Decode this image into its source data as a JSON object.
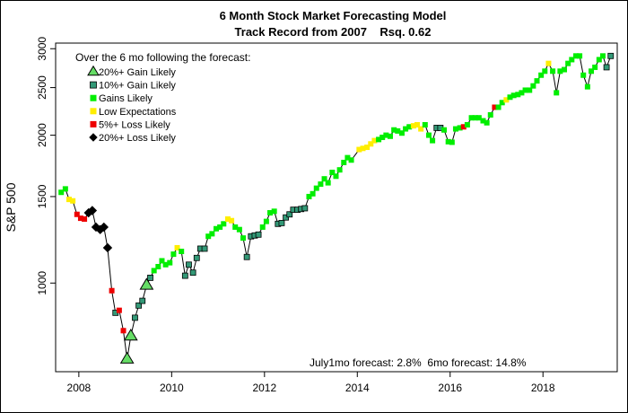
{
  "chart_data": {
    "type": "scatter",
    "title": "6 Month Stock Market Forecasting Model",
    "subtitle": "Track Record from 2007    Rsq. 0.62",
    "xlabel": "",
    "ylabel": "S&P 500",
    "x_tick_labels": [
      "2008",
      "2010",
      "2012",
      "2014",
      "2016",
      "2018"
    ],
    "x_ticks": [
      2008,
      2010,
      2012,
      2014,
      2016,
      2018
    ],
    "y_tick_labels": [
      "1000",
      "1500",
      "2000",
      "2500",
      "3000"
    ],
    "y_ticks": [
      1000,
      1500,
      2000,
      2500,
      3000
    ],
    "y_scale": "log",
    "xlim": [
      2007.5,
      2019.6
    ],
    "ylim": [
      660,
      3080
    ],
    "grid": false,
    "legend_position": "top-left",
    "legend_title": "Over the 6 mo following the forecast:",
    "footer_text": "July1mo forecast: 2.8%  6mo forecast: 14.8%",
    "categories": [
      {
        "key": "g20",
        "label": "20%+ Gain Likely",
        "shape": "triangle",
        "color": "#66dd66"
      },
      {
        "key": "g10",
        "label": "10%+ Gain Likely",
        "shape": "square",
        "color": "#339977"
      },
      {
        "key": "g",
        "label": "Gains Likely",
        "shape": "square",
        "color": "#00ee00"
      },
      {
        "key": "low",
        "label": "Low Expectations",
        "shape": "square",
        "color": "#ffee00"
      },
      {
        "key": "l5",
        "label": "5%+  Loss Likely",
        "shape": "square",
        "color": "#ee0000"
      },
      {
        "key": "l20",
        "label": "20%+  Loss Likely",
        "shape": "diamond",
        "color": "#000000"
      }
    ],
    "points": [
      [
        2007.62,
        1530,
        "g"
      ],
      [
        2007.71,
        1555,
        "g"
      ],
      [
        2007.79,
        1480,
        "low"
      ],
      [
        2007.87,
        1470,
        "low"
      ],
      [
        2007.96,
        1380,
        "l5"
      ],
      [
        2008.04,
        1355,
        "l5"
      ],
      [
        2008.12,
        1350,
        "l5"
      ],
      [
        2008.21,
        1390,
        "l20"
      ],
      [
        2008.29,
        1405,
        "l20"
      ],
      [
        2008.37,
        1300,
        "l20"
      ],
      [
        2008.46,
        1285,
        "l20"
      ],
      [
        2008.54,
        1300,
        "l20"
      ],
      [
        2008.62,
        1180,
        "l20"
      ],
      [
        2008.71,
        965,
        "l5"
      ],
      [
        2008.79,
        870,
        "g10"
      ],
      [
        2008.87,
        880,
        "l5"
      ],
      [
        2008.96,
        800,
        "l5"
      ],
      [
        2009.04,
        700,
        "g20"
      ],
      [
        2009.12,
        780,
        "g20"
      ],
      [
        2009.21,
        850,
        "g10"
      ],
      [
        2009.29,
        900,
        "g10"
      ],
      [
        2009.37,
        920,
        "g10"
      ],
      [
        2009.46,
        990,
        "g20"
      ],
      [
        2009.54,
        1025,
        "g10"
      ],
      [
        2009.62,
        1060,
        "g"
      ],
      [
        2009.71,
        1080,
        "g"
      ],
      [
        2009.79,
        1110,
        "g"
      ],
      [
        2009.87,
        1090,
        "g"
      ],
      [
        2009.96,
        1100,
        "g"
      ],
      [
        2010.04,
        1145,
        "g"
      ],
      [
        2010.12,
        1180,
        "low"
      ],
      [
        2010.21,
        1160,
        "g"
      ],
      [
        2010.29,
        1035,
        "g10"
      ],
      [
        2010.37,
        1090,
        "g10"
      ],
      [
        2010.46,
        1050,
        "g10"
      ],
      [
        2010.54,
        1125,
        "g10"
      ],
      [
        2010.62,
        1175,
        "g10"
      ],
      [
        2010.71,
        1175,
        "g10"
      ],
      [
        2010.79,
        1245,
        "g"
      ],
      [
        2010.87,
        1260,
        "g"
      ],
      [
        2010.96,
        1290,
        "g"
      ],
      [
        2011.04,
        1300,
        "g"
      ],
      [
        2011.12,
        1320,
        "g"
      ],
      [
        2011.21,
        1350,
        "low"
      ],
      [
        2011.29,
        1340,
        "low"
      ],
      [
        2011.37,
        1300,
        "g"
      ],
      [
        2011.46,
        1285,
        "g"
      ],
      [
        2011.54,
        1235,
        "g"
      ],
      [
        2011.62,
        1130,
        "g10"
      ],
      [
        2011.71,
        1245,
        "g10"
      ],
      [
        2011.79,
        1250,
        "g10"
      ],
      [
        2011.87,
        1255,
        "g10"
      ],
      [
        2011.96,
        1300,
        "g"
      ],
      [
        2012.04,
        1335,
        "g"
      ],
      [
        2012.12,
        1390,
        "g"
      ],
      [
        2012.21,
        1400,
        "g"
      ],
      [
        2012.29,
        1320,
        "g10"
      ],
      [
        2012.37,
        1325,
        "g10"
      ],
      [
        2012.46,
        1360,
        "g10"
      ],
      [
        2012.54,
        1380,
        "g10"
      ],
      [
        2012.62,
        1410,
        "g10"
      ],
      [
        2012.71,
        1410,
        "g10"
      ],
      [
        2012.79,
        1415,
        "g10"
      ],
      [
        2012.87,
        1420,
        "g10"
      ],
      [
        2012.96,
        1500,
        "g"
      ],
      [
        2013.04,
        1520,
        "g"
      ],
      [
        2013.12,
        1560,
        "g"
      ],
      [
        2013.21,
        1590,
        "g"
      ],
      [
        2013.29,
        1630,
        "g"
      ],
      [
        2013.37,
        1600,
        "g"
      ],
      [
        2013.46,
        1680,
        "g"
      ],
      [
        2013.54,
        1650,
        "g"
      ],
      [
        2013.62,
        1700,
        "g"
      ],
      [
        2013.71,
        1760,
        "g"
      ],
      [
        2013.79,
        1800,
        "g"
      ],
      [
        2013.87,
        1780,
        "g"
      ],
      [
        2014.04,
        1870,
        "low"
      ],
      [
        2014.12,
        1880,
        "low"
      ],
      [
        2014.21,
        1890,
        "low"
      ],
      [
        2014.29,
        1920,
        "low"
      ],
      [
        2014.37,
        1950,
        "low"
      ],
      [
        2014.46,
        1960,
        "g"
      ],
      [
        2014.54,
        1980,
        "g"
      ],
      [
        2014.62,
        2000,
        "g"
      ],
      [
        2014.71,
        1990,
        "g"
      ],
      [
        2014.79,
        2050,
        "g"
      ],
      [
        2014.87,
        2040,
        "g"
      ],
      [
        2014.96,
        2020,
        "g"
      ],
      [
        2015.04,
        2060,
        "g"
      ],
      [
        2015.12,
        2080,
        "g"
      ],
      [
        2015.21,
        2090,
        "low"
      ],
      [
        2015.29,
        2100,
        "low"
      ],
      [
        2015.37,
        2060,
        "low"
      ],
      [
        2015.46,
        2100,
        "g"
      ],
      [
        2015.54,
        2000,
        "g"
      ],
      [
        2015.62,
        1950,
        "g"
      ],
      [
        2015.71,
        2070,
        "g10"
      ],
      [
        2015.79,
        2070,
        "g10"
      ],
      [
        2015.87,
        2050,
        "g"
      ],
      [
        2015.96,
        1940,
        "g"
      ],
      [
        2016.04,
        1935,
        "g"
      ],
      [
        2016.12,
        2060,
        "g"
      ],
      [
        2016.21,
        2070,
        "g"
      ],
      [
        2016.29,
        2080,
        "l5"
      ],
      [
        2016.37,
        2100,
        "g"
      ],
      [
        2016.46,
        2170,
        "g"
      ],
      [
        2016.54,
        2170,
        "g"
      ],
      [
        2016.62,
        2170,
        "g"
      ],
      [
        2016.71,
        2140,
        "g"
      ],
      [
        2016.79,
        2120,
        "g"
      ],
      [
        2016.87,
        2200,
        "g"
      ],
      [
        2016.96,
        2280,
        "l5"
      ],
      [
        2017.04,
        2280,
        "g"
      ],
      [
        2017.12,
        2330,
        "g"
      ],
      [
        2017.21,
        2360,
        "low"
      ],
      [
        2017.29,
        2390,
        "g"
      ],
      [
        2017.37,
        2410,
        "g"
      ],
      [
        2017.46,
        2420,
        "g"
      ],
      [
        2017.54,
        2440,
        "g"
      ],
      [
        2017.62,
        2470,
        "g"
      ],
      [
        2017.71,
        2470,
        "g"
      ],
      [
        2017.79,
        2520,
        "g"
      ],
      [
        2017.87,
        2580,
        "g"
      ],
      [
        2017.96,
        2650,
        "g"
      ],
      [
        2018.04,
        2700,
        "g"
      ],
      [
        2018.12,
        2800,
        "low"
      ],
      [
        2018.21,
        2700,
        "g"
      ],
      [
        2018.29,
        2440,
        "g"
      ],
      [
        2018.37,
        2700,
        "g"
      ],
      [
        2018.46,
        2720,
        "g"
      ],
      [
        2018.54,
        2800,
        "g"
      ],
      [
        2018.62,
        2850,
        "g"
      ],
      [
        2018.71,
        2900,
        "g"
      ],
      [
        2018.79,
        2900,
        "g"
      ],
      [
        2018.87,
        2650,
        "g"
      ],
      [
        2018.96,
        2510,
        "g"
      ],
      [
        2019.04,
        2700,
        "g"
      ],
      [
        2019.12,
        2750,
        "g"
      ],
      [
        2019.21,
        2850,
        "g"
      ],
      [
        2019.29,
        2900,
        "g"
      ],
      [
        2019.37,
        2750,
        "g10"
      ],
      [
        2019.46,
        2900,
        "g10"
      ]
    ]
  }
}
